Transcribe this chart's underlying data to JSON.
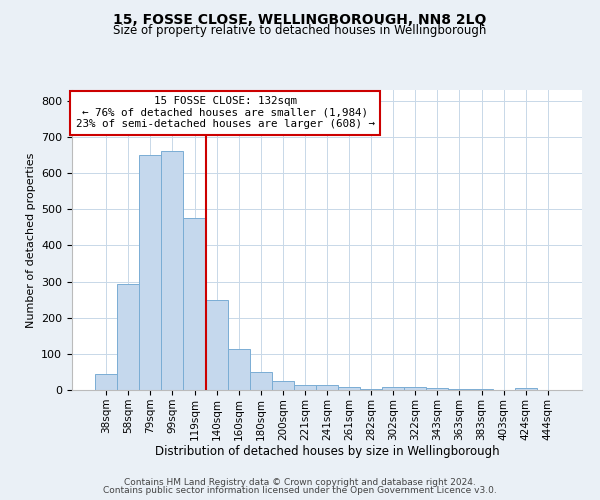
{
  "title": "15, FOSSE CLOSE, WELLINGBOROUGH, NN8 2LQ",
  "subtitle": "Size of property relative to detached houses in Wellingborough",
  "xlabel": "Distribution of detached houses by size in Wellingborough",
  "ylabel": "Number of detached properties",
  "bar_labels": [
    "38sqm",
    "58sqm",
    "79sqm",
    "99sqm",
    "119sqm",
    "140sqm",
    "160sqm",
    "180sqm",
    "200sqm",
    "221sqm",
    "241sqm",
    "261sqm",
    "282sqm",
    "302sqm",
    "322sqm",
    "343sqm",
    "363sqm",
    "383sqm",
    "403sqm",
    "424sqm",
    "444sqm"
  ],
  "bar_values": [
    45,
    292,
    651,
    660,
    477,
    248,
    113,
    50,
    25,
    14,
    14,
    8,
    2,
    8,
    8,
    5,
    3,
    3,
    0,
    5,
    0
  ],
  "bar_color": "#c5d8ed",
  "bar_edgecolor": "#7aadd4",
  "vline_x": 4.5,
  "vline_color": "#cc0000",
  "annotation_text": "15 FOSSE CLOSE: 132sqm\n← 76% of detached houses are smaller (1,984)\n23% of semi-detached houses are larger (608) →",
  "annotation_box_color": "#ffffff",
  "annotation_box_edgecolor": "#cc0000",
  "ylim": [
    0,
    830
  ],
  "yticks": [
    0,
    100,
    200,
    300,
    400,
    500,
    600,
    700,
    800
  ],
  "footer1": "Contains HM Land Registry data © Crown copyright and database right 2024.",
  "footer2": "Contains public sector information licensed under the Open Government Licence v3.0.",
  "bg_color": "#eaf0f6",
  "plot_bg_color": "#ffffff",
  "grid_color": "#c8d8e8"
}
